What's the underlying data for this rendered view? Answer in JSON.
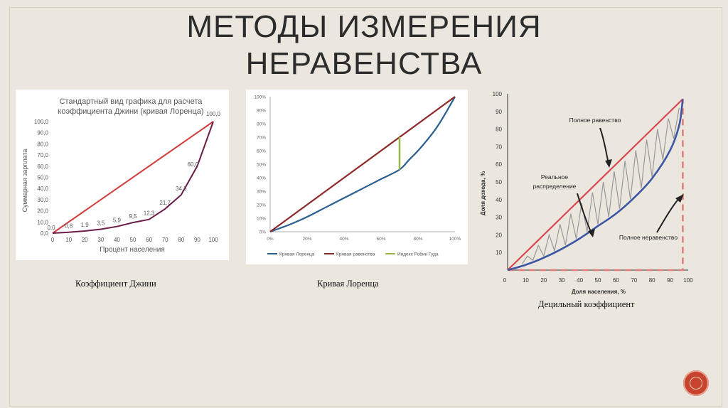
{
  "slide": {
    "title_line1": "Методы измерения",
    "title_line2": "неравенства"
  },
  "captions": {
    "gini": "Коэффициент Джини",
    "lorenz": "Кривая Лоренца",
    "decile": "Децильный коэффициент"
  },
  "chart_data": [
    {
      "type": "line",
      "title_line1": "Стандартный вид графика для расчета",
      "title_line2": "коэффициента Джини (кривая Лоренца)",
      "xlabel": "Процент населения",
      "ylabel": "Суммарная зарплата",
      "xlim": [
        0,
        100
      ],
      "ylim": [
        0,
        100
      ],
      "x_ticks": [
        "0",
        "10",
        "20",
        "30",
        "40",
        "50",
        "60",
        "70",
        "80",
        "90",
        "100"
      ],
      "y_ticks": [
        "0,0",
        "10,0",
        "20,0",
        "30,0",
        "40,0",
        "50,0",
        "60,0",
        "70,0",
        "80,0",
        "90,0",
        "100,0"
      ],
      "grid": false,
      "series": [
        {
          "color": "#d23b3b",
          "x": [
            0,
            100
          ],
          "y": [
            0,
            100
          ]
        },
        {
          "color": "#6b1c48",
          "x": [
            0,
            10,
            20,
            30,
            40,
            50,
            60,
            70,
            80,
            90,
            100
          ],
          "y": [
            0,
            0.8,
            1.9,
            3.5,
            5.9,
            9.5,
            12.3,
            21.7,
            34.3,
            60.0,
            100.0
          ]
        }
      ],
      "data_labels": [
        {
          "x": 0,
          "y": 0,
          "text": "0,0"
        },
        {
          "x": 10,
          "y": 0.8,
          "text": "0,8"
        },
        {
          "x": 20,
          "y": 1.9,
          "text": "1,9"
        },
        {
          "x": 30,
          "y": 3.5,
          "text": "3,5"
        },
        {
          "x": 40,
          "y": 5.9,
          "text": "5,9"
        },
        {
          "x": 50,
          "y": 9.5,
          "text": "9,5"
        },
        {
          "x": 60,
          "y": 12.3,
          "text": "12,3"
        },
        {
          "x": 70,
          "y": 21.7,
          "text": "21,7"
        },
        {
          "x": 80,
          "y": 34.3,
          "text": "34,3"
        },
        {
          "x": 90,
          "y": 60.0,
          "text": "60,0"
        },
        {
          "x": 100,
          "y": 100.0,
          "text": "100,0"
        }
      ]
    },
    {
      "type": "line",
      "xlim": [
        0,
        100
      ],
      "ylim": [
        0,
        100
      ],
      "x_ticks": [
        "0%",
        "20%",
        "40%",
        "60%",
        "80%",
        "100%"
      ],
      "y_ticks": [
        "0%",
        "10%",
        "20%",
        "30%",
        "40%",
        "50%",
        "60%",
        "70%",
        "80%",
        "90%",
        "100%"
      ],
      "grid": false,
      "legend_position": "bottom",
      "series": [
        {
          "name": "Кривая Лоренца",
          "color": "#2a5f8f",
          "x": [
            0,
            10,
            20,
            30,
            40,
            50,
            60,
            70,
            75,
            80,
            85,
            90,
            95,
            100
          ],
          "y": [
            0,
            5,
            11,
            18,
            25,
            32,
            39,
            46,
            53,
            60,
            68,
            77,
            88,
            100
          ]
        },
        {
          "name": "Кривая равенства",
          "color": "#8e2a2a",
          "x": [
            0,
            100
          ],
          "y": [
            0,
            100
          ]
        },
        {
          "name": "Индекс Робин Гуда",
          "color": "#9ab84a",
          "x": [
            70,
            70
          ],
          "y": [
            46,
            70
          ]
        }
      ]
    },
    {
      "type": "line",
      "xlabel": "Доля населения, %",
      "ylabel": "Доля дохода, %",
      "xlim": [
        0,
        100
      ],
      "ylim": [
        0,
        100
      ],
      "x_ticks": [
        "0",
        "10",
        "20",
        "30",
        "40",
        "50",
        "60",
        "70",
        "80",
        "90",
        "100"
      ],
      "y_ticks": [
        "10",
        "20",
        "30",
        "40",
        "50",
        "60",
        "70",
        "80",
        "90",
        "100"
      ],
      "grid": false,
      "annotations": [
        "Полное равенство",
        "Реальное распределение",
        "Полное неравенство"
      ],
      "series": [
        {
          "color": "#d9474f",
          "x": [
            0,
            97
          ],
          "y": [
            0,
            97
          ]
        },
        {
          "color": "#3c56a3",
          "x": [
            0,
            10,
            20,
            30,
            40,
            50,
            60,
            70,
            80,
            90,
            95,
            97
          ],
          "y": [
            0,
            3,
            7,
            12,
            18,
            25,
            32,
            41,
            52,
            68,
            82,
            97
          ]
        },
        {
          "color": "#e07c7c",
          "x": [
            0,
            97,
            97
          ],
          "y": [
            0,
            0,
            97
          ]
        }
      ]
    }
  ]
}
